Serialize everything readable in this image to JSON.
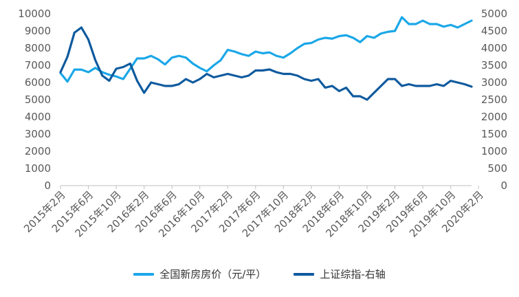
{
  "chart_data": {
    "type": "line",
    "x_tick_labels": [
      "2015年2月",
      "2015年6月",
      "2015年10月",
      "2016年2月",
      "2016年6月",
      "2016年10月",
      "2017年2月",
      "2017年6月",
      "2017年10月",
      "2018年2月",
      "2018年6月",
      "2018年10月",
      "2019年2月",
      "2019年6月",
      "2019年10月",
      "2020年2月"
    ],
    "left_axis": {
      "min": 0,
      "max": 10000,
      "step": 1000,
      "ticks": [
        "0",
        "1000",
        "2000",
        "3000",
        "4000",
        "5000",
        "6000",
        "7000",
        "8000",
        "9000",
        "10000"
      ]
    },
    "right_axis": {
      "min": 0,
      "max": 5000,
      "step": 500,
      "ticks": [
        "0",
        "500",
        "1000",
        "1500",
        "2000",
        "2500",
        "3000",
        "3500",
        "4000",
        "4500",
        "5000"
      ]
    },
    "grid": false,
    "legend_position": "bottom",
    "series": [
      {
        "name": "全国新房房价（元/平）",
        "axis": "left",
        "color": "#1AA7E8",
        "values": [
          6550,
          6050,
          6750,
          6750,
          6600,
          6850,
          6600,
          6450,
          6350,
          6200,
          6800,
          7400,
          7400,
          7550,
          7350,
          7050,
          7450,
          7550,
          7450,
          7100,
          6850,
          6650,
          7000,
          7300,
          7900,
          7800,
          7650,
          7550,
          7800,
          7700,
          7750,
          7550,
          7450,
          7700,
          8000,
          8250,
          8300,
          8500,
          8600,
          8550,
          8700,
          8750,
          8600,
          8350,
          8700,
          8600,
          8850,
          8950,
          9000,
          9800,
          9400,
          9400,
          9600,
          9400,
          9400,
          9250,
          9350,
          9200,
          9400,
          9600
        ]
      },
      {
        "name": "上证综指-右轴",
        "axis": "right",
        "color": "#0E5A9E",
        "values": [
          3300,
          3750,
          4450,
          4600,
          4250,
          3650,
          3200,
          3050,
          3400,
          3450,
          3550,
          3050,
          2700,
          3000,
          2950,
          2900,
          2900,
          2950,
          3100,
          3000,
          3100,
          3250,
          3150,
          3200,
          3250,
          3200,
          3150,
          3200,
          3350,
          3350,
          3380,
          3300,
          3250,
          3250,
          3200,
          3100,
          3050,
          3100,
          2850,
          2900,
          2750,
          2850,
          2600,
          2600,
          2500,
          2700,
          2900,
          3100,
          3100,
          2900,
          2950,
          2900,
          2900,
          2900,
          2950,
          2900,
          3050,
          3000,
          2950,
          2880
        ]
      }
    ]
  },
  "legend": [
    {
      "label": "全国新房房价（元/平）",
      "color": "#1AA7E8"
    },
    {
      "label": "上证综指-右轴",
      "color": "#0E5A9E"
    }
  ]
}
